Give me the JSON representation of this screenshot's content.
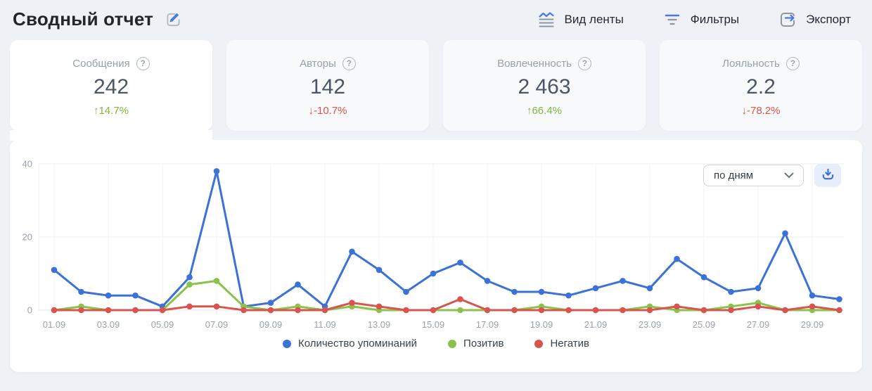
{
  "header": {
    "title": "Сводный отчет",
    "actions": [
      {
        "label": "Вид ленты"
      },
      {
        "label": "Фильтры"
      },
      {
        "label": "Экспорт"
      }
    ]
  },
  "icons": {
    "help": "?"
  },
  "stats": [
    {
      "label": "Сообщения",
      "value": "242",
      "delta": "↑14.7%",
      "trend": "up",
      "selected": true
    },
    {
      "label": "Авторы",
      "value": "142",
      "delta": "↓-10.7%",
      "trend": "down",
      "selected": false
    },
    {
      "label": "Вовлеченность",
      "value": "2 463",
      "delta": "↑66.4%",
      "trend": "up",
      "selected": false
    },
    {
      "label": "Лояльность",
      "value": "2.2",
      "delta": "↓-78.2%",
      "trend": "down",
      "selected": false
    }
  ],
  "trend_colors": {
    "up": "#7fb73e",
    "down": "#d9534f"
  },
  "chart": {
    "interval_label": "по дням"
  },
  "chart_data": {
    "type": "line",
    "categories": [
      "01.09",
      "02.09",
      "03.09",
      "04.09",
      "05.09",
      "06.09",
      "07.09",
      "08.09",
      "09.09",
      "10.09",
      "11.09",
      "12.09",
      "13.09",
      "14.09",
      "15.09",
      "16.09",
      "17.09",
      "18.09",
      "19.09",
      "20.09",
      "21.09",
      "22.09",
      "23.09",
      "24.09",
      "25.09",
      "26.09",
      "27.09",
      "28.09",
      "29.09",
      "30.09"
    ],
    "series": [
      {
        "name": "Количество упоминаний",
        "color": "#3b72d8",
        "values": [
          11,
          5,
          4,
          4,
          1,
          9,
          38,
          1,
          2,
          7,
          1,
          16,
          11,
          5,
          10,
          13,
          8,
          5,
          5,
          4,
          6,
          8,
          6,
          14,
          9,
          5,
          6,
          21,
          4,
          3
        ]
      },
      {
        "name": "Позитив",
        "color": "#8bc34a",
        "values": [
          0,
          1,
          0,
          0,
          0,
          7,
          8,
          1,
          0,
          1,
          0,
          1,
          0,
          0,
          0,
          0,
          0,
          0,
          1,
          0,
          0,
          0,
          1,
          0,
          0,
          1,
          2,
          0,
          0,
          0
        ]
      },
      {
        "name": "Негатив",
        "color": "#d9534f",
        "values": [
          0,
          0,
          0,
          0,
          0,
          1,
          1,
          0,
          0,
          0,
          0,
          2,
          1,
          0,
          0,
          3,
          0,
          0,
          0,
          0,
          0,
          0,
          0,
          1,
          0,
          0,
          1,
          0,
          1,
          0
        ]
      }
    ],
    "ylim": [
      0,
      40
    ],
    "yticks": [
      0,
      20,
      40
    ],
    "x_label_every": 2,
    "grid": true,
    "legend_position": "bottom"
  }
}
